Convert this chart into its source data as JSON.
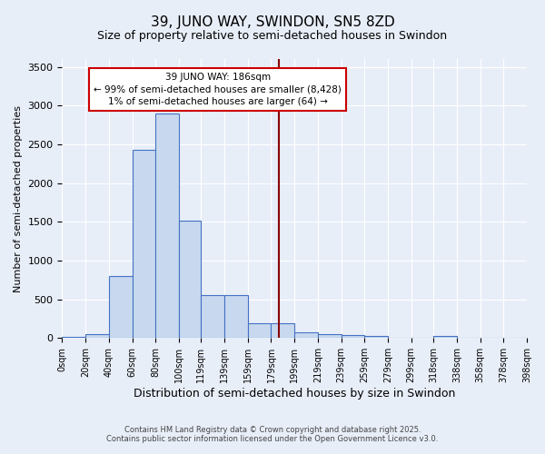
{
  "title_line1": "39, JUNO WAY, SWINDON, SN5 8ZD",
  "title_line2": "Size of property relative to semi-detached houses in Swindon",
  "xlabel": "Distribution of semi-detached houses by size in Swindon",
  "ylabel": "Number of semi-detached properties",
  "bin_edges": [
    0,
    20,
    40,
    60,
    80,
    100,
    119,
    139,
    159,
    179,
    199,
    219,
    239,
    259,
    279,
    299,
    318,
    338,
    358,
    378,
    398
  ],
  "bar_heights": [
    20,
    50,
    800,
    2430,
    2900,
    1520,
    550,
    550,
    190,
    190,
    70,
    50,
    35,
    30,
    0,
    0,
    30,
    0,
    0,
    0
  ],
  "bar_color": "#c8d9ef",
  "bar_edge_color": "#4472c4",
  "vline_x": 186,
  "vline_color": "#8b0000",
  "annotation_text": "39 JUNO WAY: 186sqm\n← 99% of semi-detached houses are smaller (8,428)\n1% of semi-detached houses are larger (64) →",
  "annotation_box_color": "#ffffff",
  "annotation_border_color": "#cc0000",
  "ylim": [
    0,
    3600
  ],
  "yticks": [
    0,
    500,
    1000,
    1500,
    2000,
    2500,
    3000,
    3500
  ],
  "background_color": "#e8eef8",
  "grid_color": "#ffffff",
  "footer_line1": "Contains HM Land Registry data © Crown copyright and database right 2025.",
  "footer_line2": "Contains public sector information licensed under the Open Government Licence v3.0."
}
